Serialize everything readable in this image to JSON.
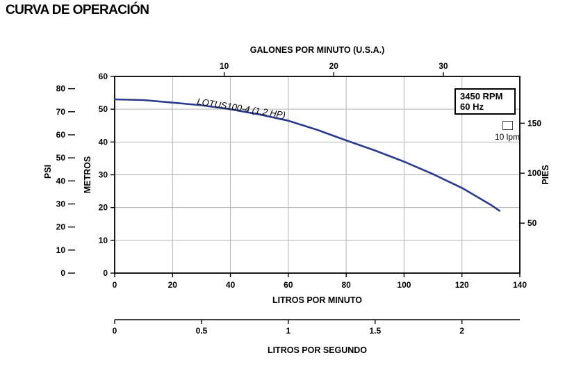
{
  "title": "CURVA DE OPERACIÓN",
  "annotation": {
    "line1": "3450 RPM",
    "line2": "60 Hz"
  },
  "legend": {
    "symbol": "square-outline",
    "label": "10 lpm"
  },
  "colors": {
    "curve": "#2b3a8c",
    "grid": "#b3b3b3",
    "axis": "#000000"
  },
  "chart_data": {
    "type": "line",
    "title": "CURVA DE OPERACIÓN",
    "curve_label": "LOTUS100-4 (1.2 HP)",
    "series": [
      {
        "name": "LOTUS100-4 (1.2 HP)",
        "x": [
          0,
          10,
          20,
          30,
          40,
          50,
          60,
          70,
          80,
          90,
          100,
          110,
          120,
          130,
          133
        ],
        "y": [
          53,
          52.8,
          52,
          51.2,
          50,
          48.4,
          46.5,
          43.7,
          40.5,
          37.4,
          34,
          30.2,
          26,
          20.8,
          19
        ]
      }
    ],
    "x_axis": {
      "label": "LITROS POR MINUTO",
      "range": [
        0,
        140
      ],
      "ticks": [
        0,
        20,
        40,
        60,
        80,
        100,
        120,
        140
      ]
    },
    "x_axis_secondary": {
      "label": "LITROS POR SEGUNDO",
      "ticks": [
        0,
        0.5,
        1,
        1.5,
        2
      ],
      "unit_to_lpm": 60
    },
    "x_axis_top": {
      "label": "GALONES POR MINUTO (U.S.A.)",
      "ticks": [
        10,
        20,
        30
      ],
      "unit_to_lpm": 3.7854
    },
    "y_axis": {
      "label": "METROS",
      "range": [
        0,
        60
      ],
      "ticks": [
        0,
        10,
        20,
        30,
        40,
        50,
        60
      ]
    },
    "y_axis_psi": {
      "label": "PSI",
      "ticks": [
        0,
        10,
        20,
        30,
        40,
        50,
        60,
        70,
        80
      ],
      "unit_to_m": 0.70325
    },
    "y_axis_right": {
      "label": "PIES",
      "ticks": [
        50,
        100,
        150
      ],
      "unit_to_m": 0.3048
    },
    "grid": true,
    "legend_position": "top-right-inside",
    "annotations": [
      "3450 RPM",
      "60 Hz",
      "10 lpm"
    ]
  }
}
